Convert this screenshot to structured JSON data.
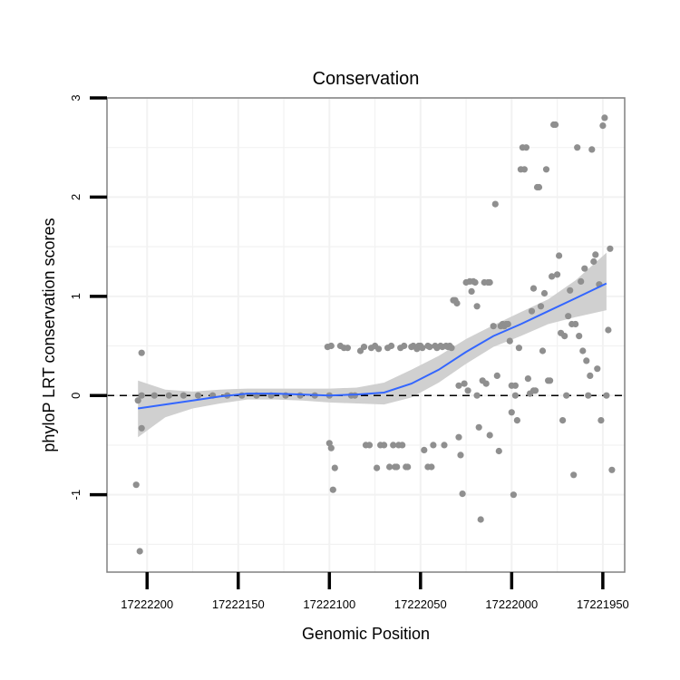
{
  "chart_data": {
    "type": "scatter",
    "title": "Conservation",
    "xlabel": "Genomic Position",
    "ylabel": "phyloP LRT conservation scores",
    "x_reversed": true,
    "xlim": [
      17222222,
      17221938
    ],
    "ylim": [
      -1.78,
      3.0
    ],
    "x_ticks": [
      17222200,
      17222150,
      17222100,
      17222050,
      17222000,
      17221950
    ],
    "y_ticks": [
      -1,
      0,
      1,
      2,
      3
    ],
    "x_tick_labels": [
      "17222200",
      "17222150",
      "17222100",
      "17222050",
      "17222000",
      "17221950"
    ],
    "y_tick_labels": [
      "-1",
      "0",
      "1",
      "2",
      "3"
    ],
    "reference_line": {
      "y": 0,
      "style": "dashed",
      "color": "#000000"
    },
    "colors": {
      "points": "#8f8f8f",
      "smooth": "#3366ff",
      "ribbon": "#d0d0d0",
      "grid": "#f2f2f2",
      "border": "#808080"
    },
    "smooth": [
      {
        "x": 17222205,
        "y": -0.13,
        "lo": -0.42,
        "hi": 0.15
      },
      {
        "x": 17222190,
        "y": -0.09,
        "lo": -0.22,
        "hi": 0.06
      },
      {
        "x": 17222175,
        "y": -0.05,
        "lo": -0.13,
        "hi": 0.04
      },
      {
        "x": 17222160,
        "y": -0.01,
        "lo": -0.08,
        "hi": 0.06
      },
      {
        "x": 17222145,
        "y": 0.02,
        "lo": -0.04,
        "hi": 0.07
      },
      {
        "x": 17222130,
        "y": 0.02,
        "lo": -0.04,
        "hi": 0.07
      },
      {
        "x": 17222115,
        "y": 0.01,
        "lo": -0.05,
        "hi": 0.07
      },
      {
        "x": 17222100,
        "y": 0.0,
        "lo": -0.07,
        "hi": 0.07
      },
      {
        "x": 17222085,
        "y": 0.01,
        "lo": -0.08,
        "hi": 0.08
      },
      {
        "x": 17222070,
        "y": 0.03,
        "lo": -0.09,
        "hi": 0.13
      },
      {
        "x": 17222055,
        "y": 0.12,
        "lo": -0.02,
        "hi": 0.26
      },
      {
        "x": 17222040,
        "y": 0.26,
        "lo": 0.13,
        "hi": 0.4
      },
      {
        "x": 17222025,
        "y": 0.44,
        "lo": 0.32,
        "hi": 0.57
      },
      {
        "x": 17222010,
        "y": 0.6,
        "lo": 0.49,
        "hi": 0.71
      },
      {
        "x": 17221995,
        "y": 0.72,
        "lo": 0.6,
        "hi": 0.84
      },
      {
        "x": 17221980,
        "y": 0.85,
        "lo": 0.72,
        "hi": 0.97
      },
      {
        "x": 17221965,
        "y": 0.98,
        "lo": 0.79,
        "hi": 1.16
      },
      {
        "x": 17221948,
        "y": 1.13,
        "lo": 0.86,
        "hi": 1.44
      }
    ],
    "points": [
      {
        "x": 17222206,
        "y": -0.9
      },
      {
        "x": 17222205,
        "y": -0.05
      },
      {
        "x": 17222204,
        "y": -1.57
      },
      {
        "x": 17222203,
        "y": 0.43
      },
      {
        "x": 17222203,
        "y": -0.33
      },
      {
        "x": 17222203,
        "y": 0.0
      },
      {
        "x": 17222196,
        "y": 0.0
      },
      {
        "x": 17222188,
        "y": 0.0
      },
      {
        "x": 17222180,
        "y": 0.0
      },
      {
        "x": 17222172,
        "y": 0.0
      },
      {
        "x": 17222164,
        "y": 0.0
      },
      {
        "x": 17222156,
        "y": 0.0
      },
      {
        "x": 17222148,
        "y": 0.0
      },
      {
        "x": 17222140,
        "y": 0.0
      },
      {
        "x": 17222132,
        "y": 0.0
      },
      {
        "x": 17222124,
        "y": 0.0
      },
      {
        "x": 17222116,
        "y": 0.0
      },
      {
        "x": 17222108,
        "y": 0.0
      },
      {
        "x": 17222100,
        "y": 0.0
      },
      {
        "x": 17222101,
        "y": 0.49
      },
      {
        "x": 17222099,
        "y": 0.5
      },
      {
        "x": 17222100,
        "y": -0.48
      },
      {
        "x": 17222099,
        "y": -0.53
      },
      {
        "x": 17222098,
        "y": -0.95
      },
      {
        "x": 17222097,
        "y": -0.73
      },
      {
        "x": 17222094,
        "y": 0.5
      },
      {
        "x": 17222092,
        "y": 0.48
      },
      {
        "x": 17222090,
        "y": 0.48
      },
      {
        "x": 17222088,
        "y": 0.0
      },
      {
        "x": 17222086,
        "y": 0.0
      },
      {
        "x": 17222083,
        "y": 0.45
      },
      {
        "x": 17222081,
        "y": 0.49
      },
      {
        "x": 17222080,
        "y": -0.5
      },
      {
        "x": 17222078,
        "y": -0.5
      },
      {
        "x": 17222077,
        "y": 0.48
      },
      {
        "x": 17222075,
        "y": 0.5
      },
      {
        "x": 17222074,
        "y": -0.73
      },
      {
        "x": 17222073,
        "y": 0.47
      },
      {
        "x": 17222072,
        "y": -0.5
      },
      {
        "x": 17222070,
        "y": -0.5
      },
      {
        "x": 17222068,
        "y": 0.48
      },
      {
        "x": 17222067,
        "y": -0.72
      },
      {
        "x": 17222066,
        "y": 0.5
      },
      {
        "x": 17222065,
        "y": -0.5
      },
      {
        "x": 17222064,
        "y": -0.72
      },
      {
        "x": 17222063,
        "y": -0.72
      },
      {
        "x": 17222062,
        "y": -0.5
      },
      {
        "x": 17222061,
        "y": 0.48
      },
      {
        "x": 17222060,
        "y": -0.5
      },
      {
        "x": 17222059,
        "y": 0.5
      },
      {
        "x": 17222058,
        "y": -0.72
      },
      {
        "x": 17222057,
        "y": -0.72
      },
      {
        "x": 17222055,
        "y": 0.49
      },
      {
        "x": 17222054,
        "y": 0.5
      },
      {
        "x": 17222052,
        "y": 0.47
      },
      {
        "x": 17222051,
        "y": 0.5
      },
      {
        "x": 17222050,
        "y": 0.5
      },
      {
        "x": 17222049,
        "y": 0.48
      },
      {
        "x": 17222048,
        "y": -0.55
      },
      {
        "x": 17222046,
        "y": 0.5
      },
      {
        "x": 17222046,
        "y": -0.72
      },
      {
        "x": 17222045,
        "y": 0.49
      },
      {
        "x": 17222044,
        "y": -0.72
      },
      {
        "x": 17222043,
        "y": -0.5
      },
      {
        "x": 17222042,
        "y": 0.5
      },
      {
        "x": 17222041,
        "y": 0.48
      },
      {
        "x": 17222039,
        "y": 0.5
      },
      {
        "x": 17222038,
        "y": 0.49
      },
      {
        "x": 17222037,
        "y": -0.5
      },
      {
        "x": 17222036,
        "y": 0.5
      },
      {
        "x": 17222035,
        "y": 0.49
      },
      {
        "x": 17222034,
        "y": 0.5
      },
      {
        "x": 17222033,
        "y": 0.48
      },
      {
        "x": 17222032,
        "y": 0.96
      },
      {
        "x": 17222031,
        "y": 0.96
      },
      {
        "x": 17222030,
        "y": 0.93
      },
      {
        "x": 17222029,
        "y": -0.42
      },
      {
        "x": 17222029,
        "y": 0.1
      },
      {
        "x": 17222028,
        "y": -0.6
      },
      {
        "x": 17222027,
        "y": -0.99
      },
      {
        "x": 17222026,
        "y": 0.12
      },
      {
        "x": 17222025,
        "y": 1.14
      },
      {
        "x": 17222024,
        "y": 0.05
      },
      {
        "x": 17222023,
        "y": 1.15
      },
      {
        "x": 17222022,
        "y": 1.05
      },
      {
        "x": 17222021,
        "y": 1.15
      },
      {
        "x": 17222020,
        "y": 1.14
      },
      {
        "x": 17222019,
        "y": 0.9
      },
      {
        "x": 17222019,
        "y": 0.0
      },
      {
        "x": 17222018,
        "y": -0.32
      },
      {
        "x": 17222017,
        "y": -1.25
      },
      {
        "x": 17222016,
        "y": 0.15
      },
      {
        "x": 17222015,
        "y": 1.14
      },
      {
        "x": 17222014,
        "y": 0.12
      },
      {
        "x": 17222013,
        "y": 1.14
      },
      {
        "x": 17222012,
        "y": 1.14
      },
      {
        "x": 17222012,
        "y": -0.4
      },
      {
        "x": 17222010,
        "y": 0.7
      },
      {
        "x": 17222009,
        "y": 1.93
      },
      {
        "x": 17222008,
        "y": 0.2
      },
      {
        "x": 17222007,
        "y": -0.56
      },
      {
        "x": 17222006,
        "y": 0.7
      },
      {
        "x": 17222005,
        "y": 0.72
      },
      {
        "x": 17222004,
        "y": 0.7
      },
      {
        "x": 17222003,
        "y": 0.72
      },
      {
        "x": 17222002,
        "y": 0.72
      },
      {
        "x": 17222001,
        "y": 0.55
      },
      {
        "x": 17222000,
        "y": -0.17
      },
      {
        "x": 17222000,
        "y": 0.1
      },
      {
        "x": 17221999,
        "y": -1.0
      },
      {
        "x": 17221998,
        "y": 0.0
      },
      {
        "x": 17221998,
        "y": 0.1
      },
      {
        "x": 17221997,
        "y": -0.25
      },
      {
        "x": 17221996,
        "y": 0.48
      },
      {
        "x": 17221995,
        "y": 2.28
      },
      {
        "x": 17221994,
        "y": 2.5
      },
      {
        "x": 17221993,
        "y": 2.28
      },
      {
        "x": 17221992,
        "y": 2.5
      },
      {
        "x": 17221991,
        "y": 0.17
      },
      {
        "x": 17221990,
        "y": 0.02
      },
      {
        "x": 17221989,
        "y": 0.85
      },
      {
        "x": 17221988,
        "y": 0.05
      },
      {
        "x": 17221988,
        "y": 1.08
      },
      {
        "x": 17221987,
        "y": 0.05
      },
      {
        "x": 17221986,
        "y": 2.1
      },
      {
        "x": 17221985,
        "y": 2.1
      },
      {
        "x": 17221984,
        "y": 0.9
      },
      {
        "x": 17221983,
        "y": 0.45
      },
      {
        "x": 17221982,
        "y": 1.03
      },
      {
        "x": 17221981,
        "y": 2.28
      },
      {
        "x": 17221980,
        "y": 0.15
      },
      {
        "x": 17221979,
        "y": 0.15
      },
      {
        "x": 17221978,
        "y": 1.2
      },
      {
        "x": 17221977,
        "y": 2.73
      },
      {
        "x": 17221976,
        "y": 2.73
      },
      {
        "x": 17221975,
        "y": 1.22
      },
      {
        "x": 17221974,
        "y": 1.41
      },
      {
        "x": 17221973,
        "y": 0.63
      },
      {
        "x": 17221972,
        "y": -0.25
      },
      {
        "x": 17221971,
        "y": 0.6
      },
      {
        "x": 17221970,
        "y": 0.0
      },
      {
        "x": 17221969,
        "y": 0.8
      },
      {
        "x": 17221968,
        "y": 1.06
      },
      {
        "x": 17221967,
        "y": 0.72
      },
      {
        "x": 17221966,
        "y": -0.8
      },
      {
        "x": 17221965,
        "y": 0.72
      },
      {
        "x": 17221964,
        "y": 2.5
      },
      {
        "x": 17221963,
        "y": 0.6
      },
      {
        "x": 17221962,
        "y": 1.15
      },
      {
        "x": 17221961,
        "y": 0.45
      },
      {
        "x": 17221960,
        "y": 1.28
      },
      {
        "x": 17221959,
        "y": 0.35
      },
      {
        "x": 17221958,
        "y": 0.0
      },
      {
        "x": 17221957,
        "y": 0.2
      },
      {
        "x": 17221956,
        "y": 2.48
      },
      {
        "x": 17221955,
        "y": 1.35
      },
      {
        "x": 17221954,
        "y": 1.42
      },
      {
        "x": 17221953,
        "y": 0.27
      },
      {
        "x": 17221952,
        "y": 1.12
      },
      {
        "x": 17221951,
        "y": -0.25
      },
      {
        "x": 17221950,
        "y": 2.72
      },
      {
        "x": 17221949,
        "y": 2.8
      },
      {
        "x": 17221948,
        "y": 0.0
      },
      {
        "x": 17221947,
        "y": 0.66
      },
      {
        "x": 17221946,
        "y": 1.48
      },
      {
        "x": 17221945,
        "y": -0.75
      }
    ]
  }
}
